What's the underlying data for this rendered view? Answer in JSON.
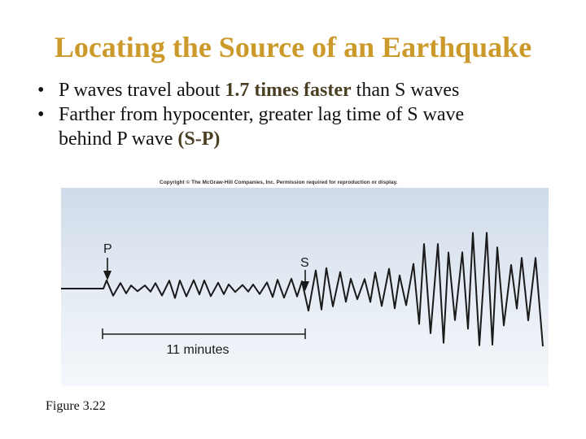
{
  "slide": {
    "title": "Locating the Source of an Earthquake",
    "bullets": [
      {
        "pre": "P waves travel about ",
        "emph": "1.7 times faster",
        "post": " than S waves"
      },
      {
        "line1": "Farther from hypocenter, greater lag time of S wave",
        "line2_pre": "behind P wave ",
        "line2_emph": "(S-P)"
      }
    ]
  },
  "figure": {
    "copyright": "Copyright © The McGraw-Hill Companies, Inc. Permission required for reproduction or display.",
    "p_label": "P",
    "s_label": "S",
    "interval_label": "11 minutes",
    "caption": "Figure 3.22"
  },
  "colors": {
    "title": "#cc9a2a",
    "emphasis": "#4a3f22",
    "trace": "#1a1a1a"
  }
}
